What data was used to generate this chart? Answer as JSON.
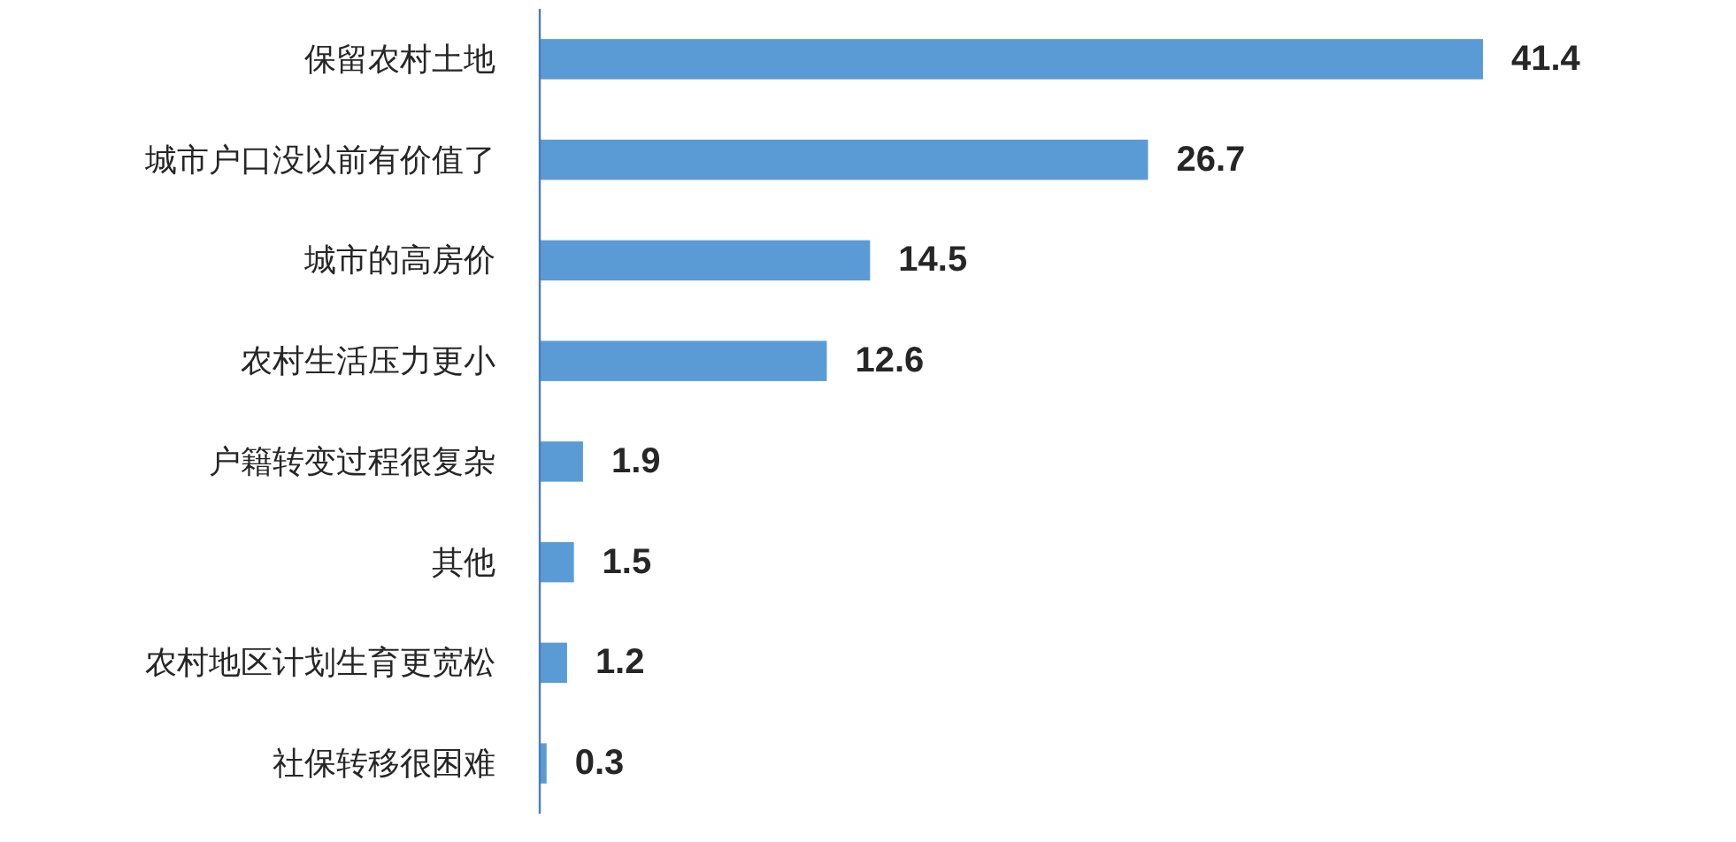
{
  "chart_data": {
    "type": "bar",
    "orientation": "horizontal",
    "categories": [
      "保留农村土地",
      "城市户口没以前有价值了",
      "城市的高房价",
      "农村生活压力更小",
      "户籍转变过程很复杂",
      "其他",
      "农村地区计划生育更宽松",
      "社保转移很困难"
    ],
    "values": [
      41.4,
      26.7,
      14.5,
      12.6,
      1.9,
      1.5,
      1.2,
      0.3
    ],
    "color": "#5b9bd5",
    "data_labels": true
  }
}
